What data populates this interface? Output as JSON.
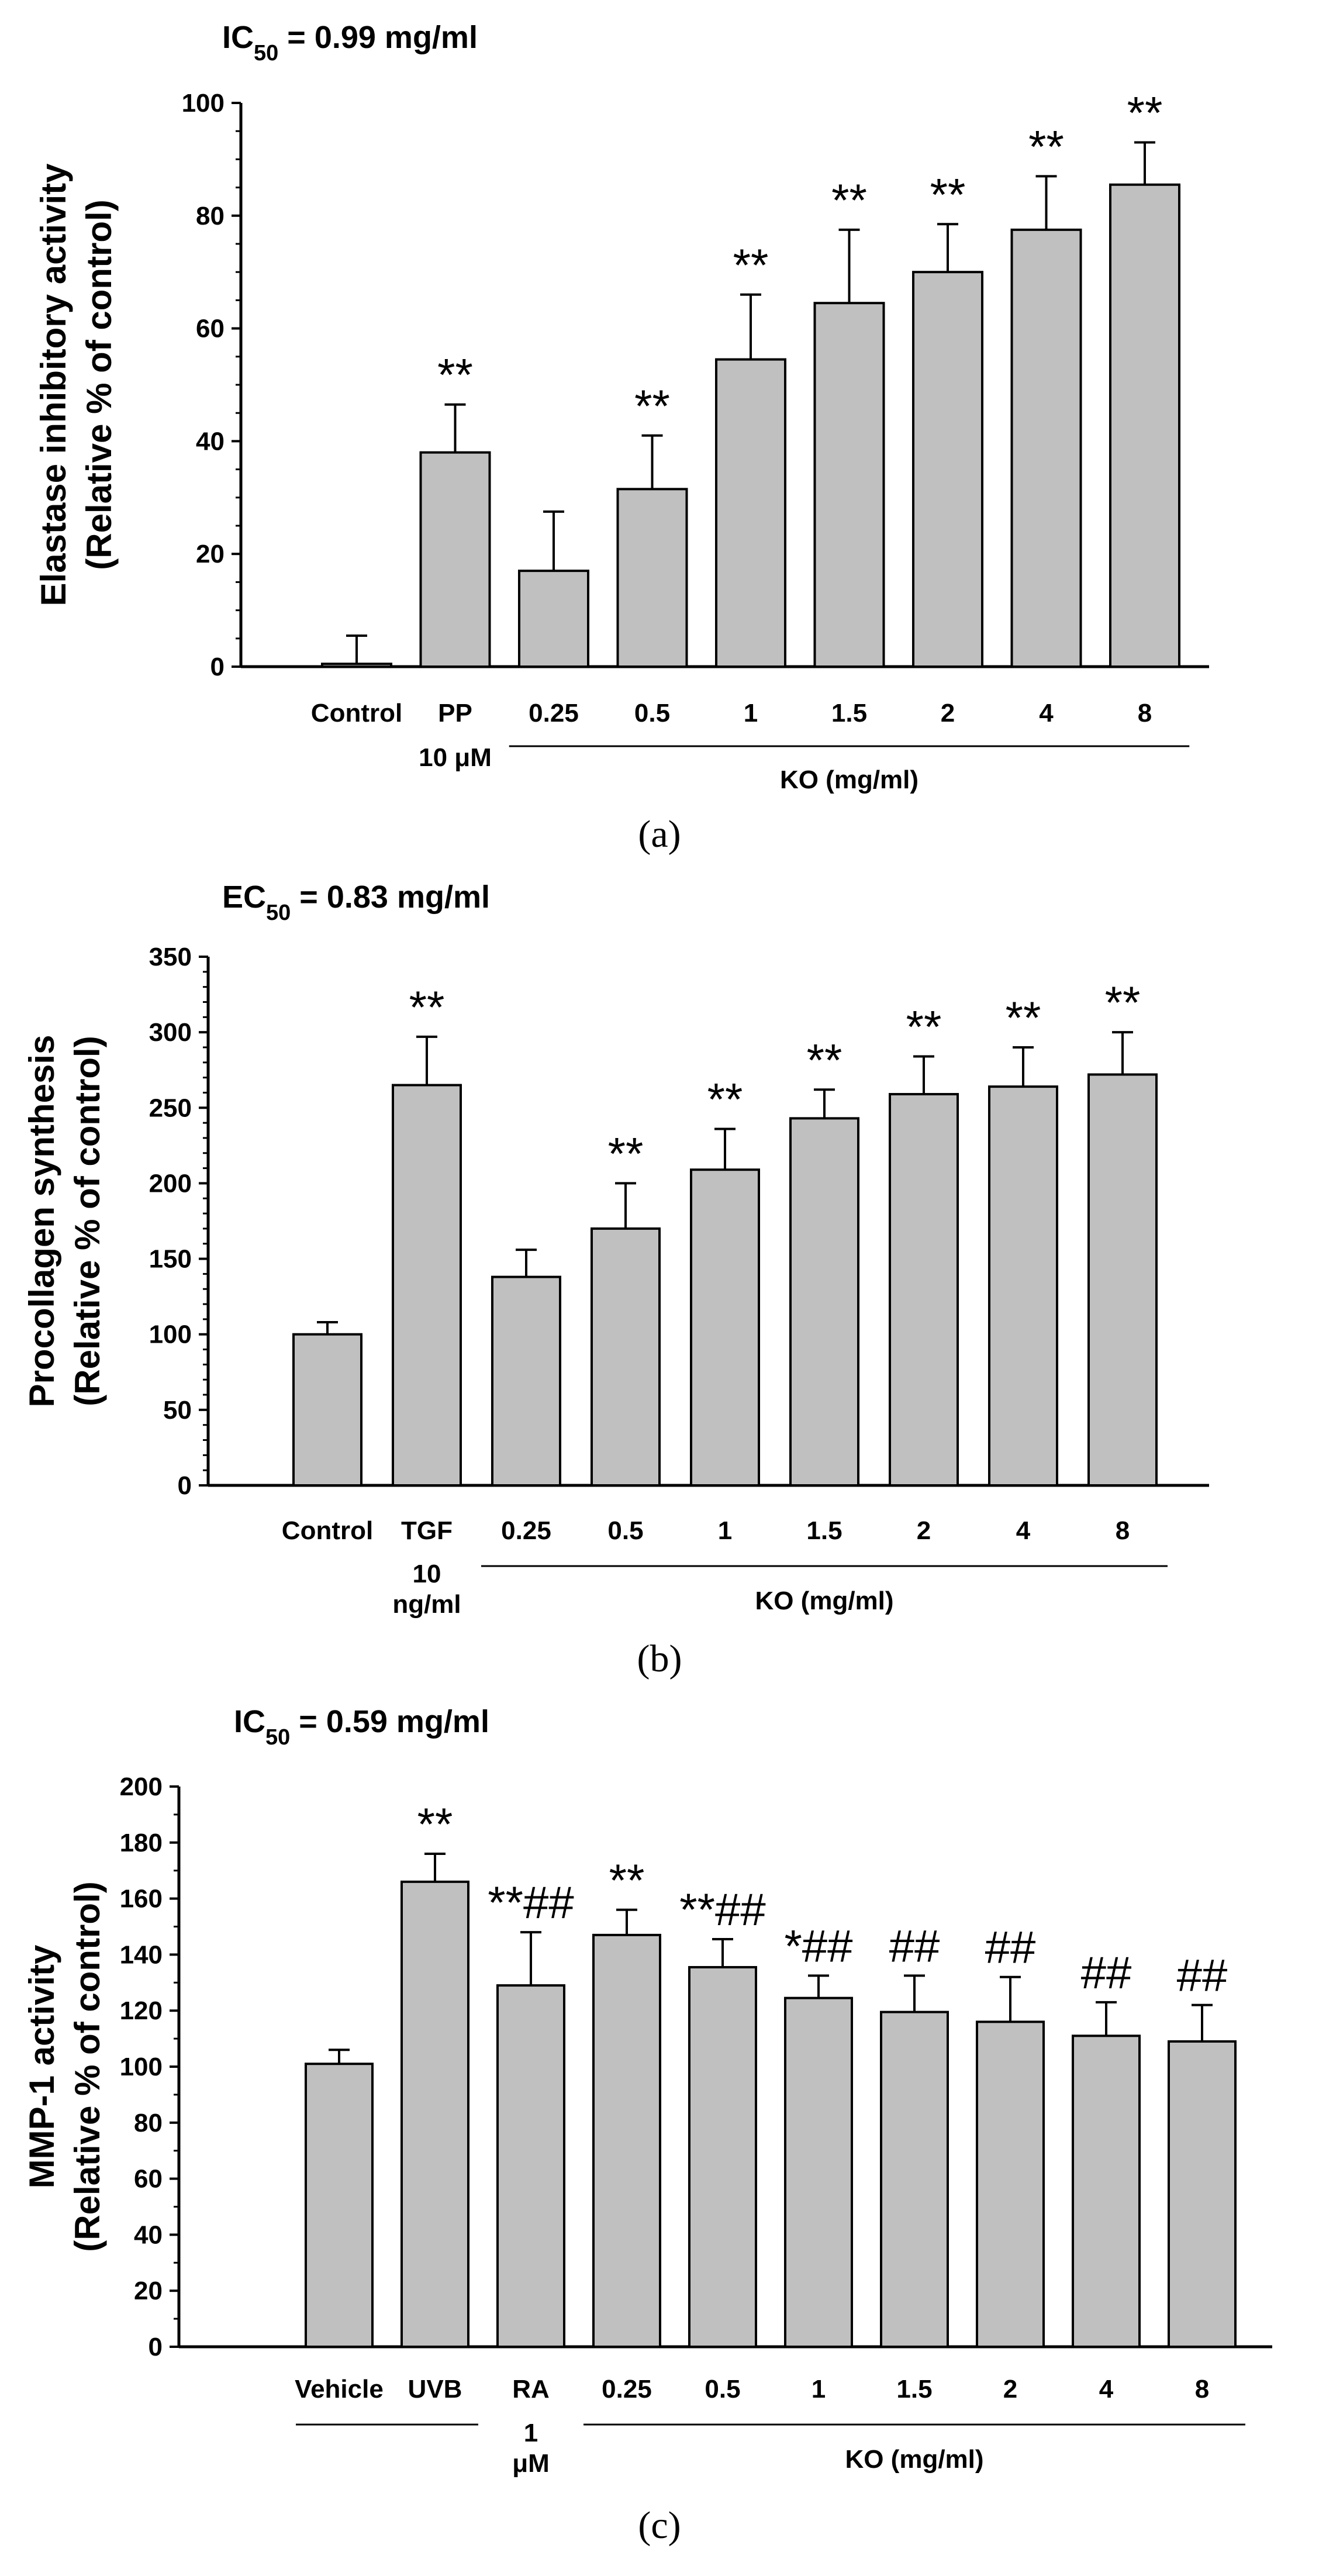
{
  "chart_data": [
    {
      "type": "bar",
      "panel_label": "(a)",
      "title": "IC50 = 0.99 mg/ml",
      "title_prefix": "IC",
      "title_sub": "50",
      "title_suffix": " = 0.99 mg/ml",
      "ylabel_line1": "Elastase inhibitory activity",
      "ylabel_line2": "(Relative % of control)",
      "ylim": [
        0,
        100
      ],
      "yticks": [
        0,
        20,
        40,
        60,
        80,
        100
      ],
      "categories": [
        "Control",
        "PP",
        "0.25",
        "0.5",
        "1",
        "1.5",
        "2",
        "4",
        "8"
      ],
      "sublabels": [
        {
          "index": 1,
          "lines": [
            "10 μM"
          ]
        }
      ],
      "values": [
        0.5,
        38,
        17,
        31.5,
        54.5,
        64.5,
        70,
        77.5,
        85.5
      ],
      "errors": [
        5,
        8.5,
        10.5,
        9.5,
        11.5,
        13,
        8.5,
        9.5,
        7.5
      ],
      "significance": [
        "",
        "**",
        "",
        "**",
        "**",
        "**",
        "**",
        "**",
        "**"
      ],
      "groups": [
        {
          "label": "KO (mg/ml)",
          "from": 2,
          "to": 8
        }
      ]
    },
    {
      "type": "bar",
      "panel_label": "(b)",
      "title": "EC50 = 0.83 mg/ml",
      "title_prefix": "EC",
      "title_sub": "50",
      "title_suffix": " = 0.83 mg/ml",
      "ylabel_line1": "Procollagen synthesis",
      "ylabel_line2": "(Relative % of control)",
      "ylim": [
        0,
        350
      ],
      "yticks": [
        0,
        50,
        100,
        150,
        200,
        250,
        300,
        350
      ],
      "categories": [
        "Control",
        "TGF",
        "0.25",
        "0.5",
        "1",
        "1.5",
        "2",
        "4",
        "8"
      ],
      "sublabels": [
        {
          "index": 1,
          "lines": [
            "10",
            "ng/ml"
          ]
        }
      ],
      "values": [
        100,
        265,
        138,
        170,
        209,
        243,
        259,
        264,
        272
      ],
      "errors": [
        8,
        32,
        18,
        30,
        27,
        19,
        25,
        26,
        28
      ],
      "significance": [
        "",
        "**",
        "",
        "**",
        "**",
        "**",
        "**",
        "**",
        "**"
      ],
      "groups": [
        {
          "label": "KO (mg/ml)",
          "from": 2,
          "to": 8
        }
      ]
    },
    {
      "type": "bar",
      "panel_label": "(c)",
      "title": "IC50 = 0.59 mg/ml",
      "title_prefix": "IC",
      "title_sub": "50",
      "title_suffix": " = 0.59 mg/ml",
      "ylabel_line1": "MMP-1 activity",
      "ylabel_line2": "(Relative % of control)",
      "ylim": [
        0,
        200
      ],
      "yticks": [
        0,
        20,
        40,
        60,
        80,
        100,
        120,
        140,
        160,
        180,
        200
      ],
      "categories": [
        "Vehicle",
        "UVB",
        "RA",
        "0.25",
        "0.5",
        "1",
        "1.5",
        "2",
        "4",
        "8"
      ],
      "sublabels": [
        {
          "index": 2,
          "lines": [
            "1",
            "μM"
          ]
        }
      ],
      "values": [
        101,
        166,
        129,
        147,
        135.5,
        124.5,
        119.5,
        116,
        111,
        109
      ],
      "errors": [
        5,
        10,
        19,
        9,
        10,
        8,
        13,
        16,
        12,
        13
      ],
      "significance": [
        "",
        "**",
        "**##",
        "**",
        "**##",
        "*##",
        "##",
        "##",
        "##",
        "##"
      ],
      "groups": [
        {
          "label": "",
          "from": 0,
          "to": 1
        },
        {
          "label": "KO (mg/ml)",
          "from": 3,
          "to": 9
        }
      ]
    }
  ]
}
